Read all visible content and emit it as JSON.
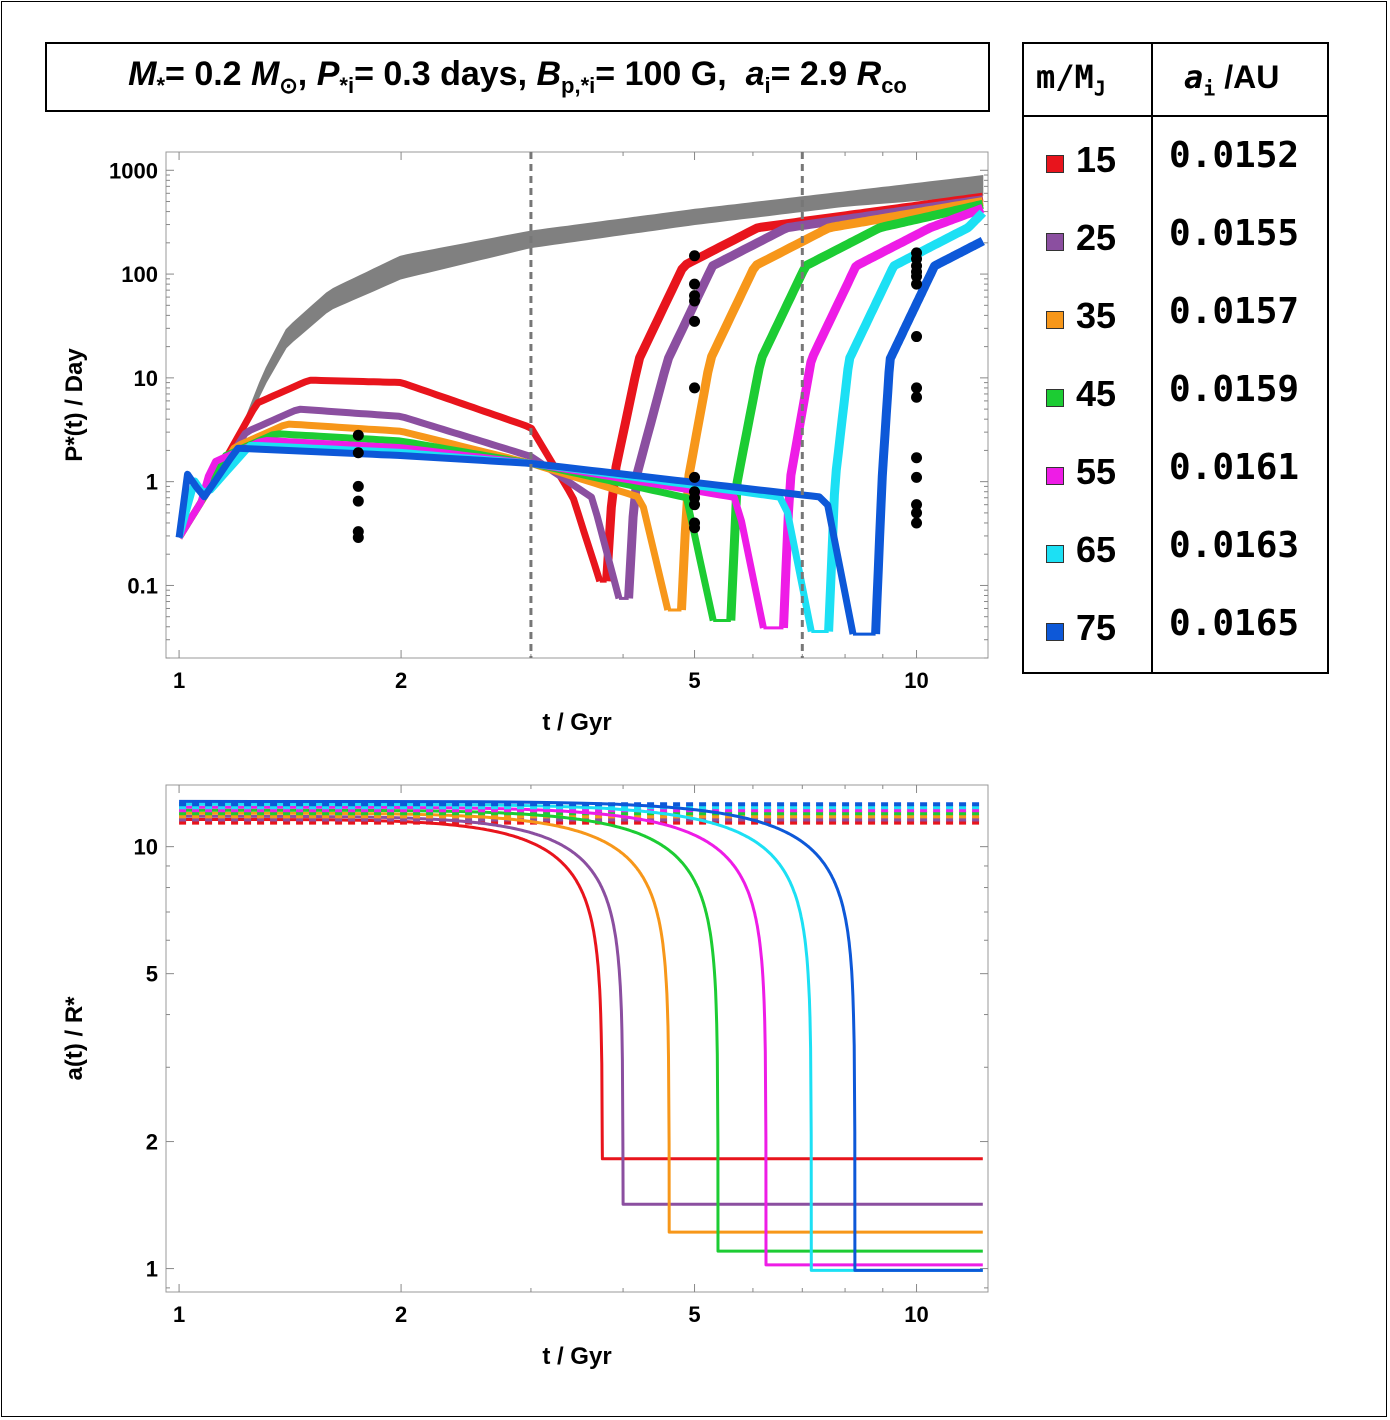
{
  "title": {
    "mstar_sym": "M",
    "mstar_sub": "*",
    "mstar_val": "= 0.2 ",
    "msun_sym": "M",
    "msun_sub": "⊙",
    "p_sym": "P",
    "p_sub": "*i",
    "p_val": "= 0.3 days, ",
    "b_sym": "B",
    "b_sub": "p,*i",
    "b_val": "= 100 G, ",
    "a_sym": "a",
    "a_sub": "i",
    "a_val": "= 2.9 ",
    "rco_sym": "R",
    "rco_sub": "co"
  },
  "legend_table": {
    "col1_header": "m/M",
    "col1_header_sub": "J",
    "col2_header": "a",
    "col2_header_sub": "i",
    "col2_header_unit": " /AU",
    "rows": [
      {
        "mass": "15",
        "a_i": "0.0152",
        "color": "#e8141c"
      },
      {
        "mass": "25",
        "a_i": "0.0155",
        "color": "#8b4fa0"
      },
      {
        "mass": "35",
        "a_i": "0.0157",
        "color": "#f7971a"
      },
      {
        "mass": "45",
        "a_i": "0.0159",
        "color": "#1ccc33"
      },
      {
        "mass": "55",
        "a_i": "0.0161",
        "color": "#ee1ce6"
      },
      {
        "mass": "65",
        "a_i": "0.0163",
        "color": "#1ce0f4"
      },
      {
        "mass": "75",
        "a_i": "0.0165",
        "color": "#0d58d8"
      }
    ]
  },
  "chart_data": [
    {
      "type": "line",
      "title": "",
      "xlabel": "t / Gyr",
      "ylabel": "P*(t) / Day",
      "xscale": "log",
      "yscale": "log",
      "xlim": [
        0.96,
        12.5
      ],
      "ylim": [
        0.02,
        1500
      ],
      "x_ticks": [
        1,
        2,
        5,
        10
      ],
      "y_ticks": [
        0.1,
        1,
        10,
        100,
        1000
      ],
      "x_tick_labels": [
        "1",
        "2",
        "5",
        "10"
      ],
      "y_tick_labels": [
        "0.1",
        "1",
        "10",
        "100",
        "1000"
      ],
      "vertical_dashed_lines_x": [
        3.0,
        7.0
      ],
      "breakup_band": {
        "color": "#808080",
        "x": [
          1.0,
          1.1,
          1.2,
          1.3,
          1.4,
          1.6,
          2.0,
          3.0,
          5.0,
          8.0,
          12.5
        ],
        "y_low": [
          0.29,
          0.8,
          2.2,
          8,
          20,
          45,
          90,
          180,
          300,
          450,
          580
        ],
        "y_high": [
          0.29,
          0.85,
          2.6,
          11,
          30,
          70,
          150,
          260,
          420,
          620,
          900
        ]
      },
      "series": [
        {
          "name": "15",
          "color": "#e8141c",
          "peak_x": 1.5,
          "peak_y": 9.5,
          "dip_x": [
            3.72,
            3.8
          ],
          "dip_y": 0.11,
          "rise_mid_x": 4.2,
          "final_y": 550
        },
        {
          "name": "25",
          "color": "#8b4fa0",
          "peak_x": 1.45,
          "peak_y": 5.0,
          "dip_x": [
            3.95,
            4.07
          ],
          "dip_y": 0.075,
          "rise_mid_x": 4.6,
          "final_y": 520
        },
        {
          "name": "35",
          "color": "#f7971a",
          "peak_x": 1.4,
          "peak_y": 3.6,
          "dip_x": [
            4.6,
            4.8
          ],
          "dip_y": 0.058,
          "rise_mid_x": 5.25,
          "final_y": 500
        },
        {
          "name": "45",
          "color": "#1ccc33",
          "peak_x": 1.35,
          "peak_y": 2.9,
          "dip_x": [
            5.3,
            5.6
          ],
          "dip_y": 0.046,
          "rise_mid_x": 6.15,
          "final_y": 470
        },
        {
          "name": "55",
          "color": "#ee1ce6",
          "peak_x": 1.3,
          "peak_y": 2.5,
          "dip_x": [
            6.2,
            6.6
          ],
          "dip_y": 0.039,
          "rise_mid_x": 7.2,
          "final_y": 430
        },
        {
          "name": "65",
          "color": "#1ce0f4",
          "peak_x": 1.25,
          "peak_y": 2.25,
          "dip_x": [
            7.2,
            7.6
          ],
          "dip_y": 0.036,
          "rise_mid_x": 8.1,
          "final_y": 390
        },
        {
          "name": "75",
          "color": "#0d58d8",
          "peak_x": 1.2,
          "peak_y": 2.1,
          "dip_x": [
            8.2,
            8.8
          ],
          "dip_y": 0.034,
          "rise_mid_x": 9.2,
          "final_y": 330
        }
      ],
      "observed_points": [
        {
          "x": 1.75,
          "y": [
            2.8,
            1.9,
            0.9,
            0.65,
            0.33,
            0.29
          ]
        },
        {
          "x": 5.0,
          "y": [
            150,
            80,
            62,
            55,
            35,
            8,
            1.1,
            0.8,
            0.7,
            0.6,
            0.4,
            0.36
          ]
        },
        {
          "x": 10.0,
          "y": [
            160,
            140,
            120,
            105,
            95,
            80,
            25,
            8,
            6.5,
            1.7,
            1.1,
            0.6,
            0.5,
            0.4
          ]
        }
      ]
    },
    {
      "type": "line",
      "title": "",
      "xlabel": "t / Gyr",
      "ylabel": "a(t) / R*",
      "xscale": "log",
      "yscale": "log",
      "xlim": [
        0.96,
        12.5
      ],
      "ylim": [
        0.88,
        14
      ],
      "x_ticks": [
        1,
        2,
        5,
        10
      ],
      "y_ticks": [
        1,
        2,
        5,
        10
      ],
      "x_tick_labels": [
        "1",
        "2",
        "5",
        "10"
      ],
      "y_tick_labels": [
        "1",
        "2",
        "5",
        "10"
      ],
      "series": [
        {
          "name": "15",
          "color": "#e8141c",
          "start_y": 11.6,
          "plunge_x": 3.75,
          "final_y": 1.82,
          "dashed_y": 11.4
        },
        {
          "name": "25",
          "color": "#8b4fa0",
          "start_y": 11.8,
          "plunge_x": 4.0,
          "final_y": 1.42,
          "dashed_y": 11.6
        },
        {
          "name": "35",
          "color": "#f7971a",
          "start_y": 12.0,
          "plunge_x": 4.62,
          "final_y": 1.22,
          "dashed_y": 11.8
        },
        {
          "name": "45",
          "color": "#1ccc33",
          "start_y": 12.2,
          "plunge_x": 5.38,
          "final_y": 1.1,
          "dashed_y": 12.0
        },
        {
          "name": "55",
          "color": "#ee1ce6",
          "start_y": 12.4,
          "plunge_x": 6.25,
          "final_y": 1.02,
          "dashed_y": 12.2
        },
        {
          "name": "65",
          "color": "#1ce0f4",
          "start_y": 12.6,
          "plunge_x": 7.2,
          "final_y": 0.99,
          "dashed_y": 12.4
        },
        {
          "name": "75",
          "color": "#0d58d8",
          "start_y": 12.8,
          "plunge_x": 8.25,
          "final_y": 0.99,
          "dashed_y": 12.6
        }
      ]
    }
  ]
}
